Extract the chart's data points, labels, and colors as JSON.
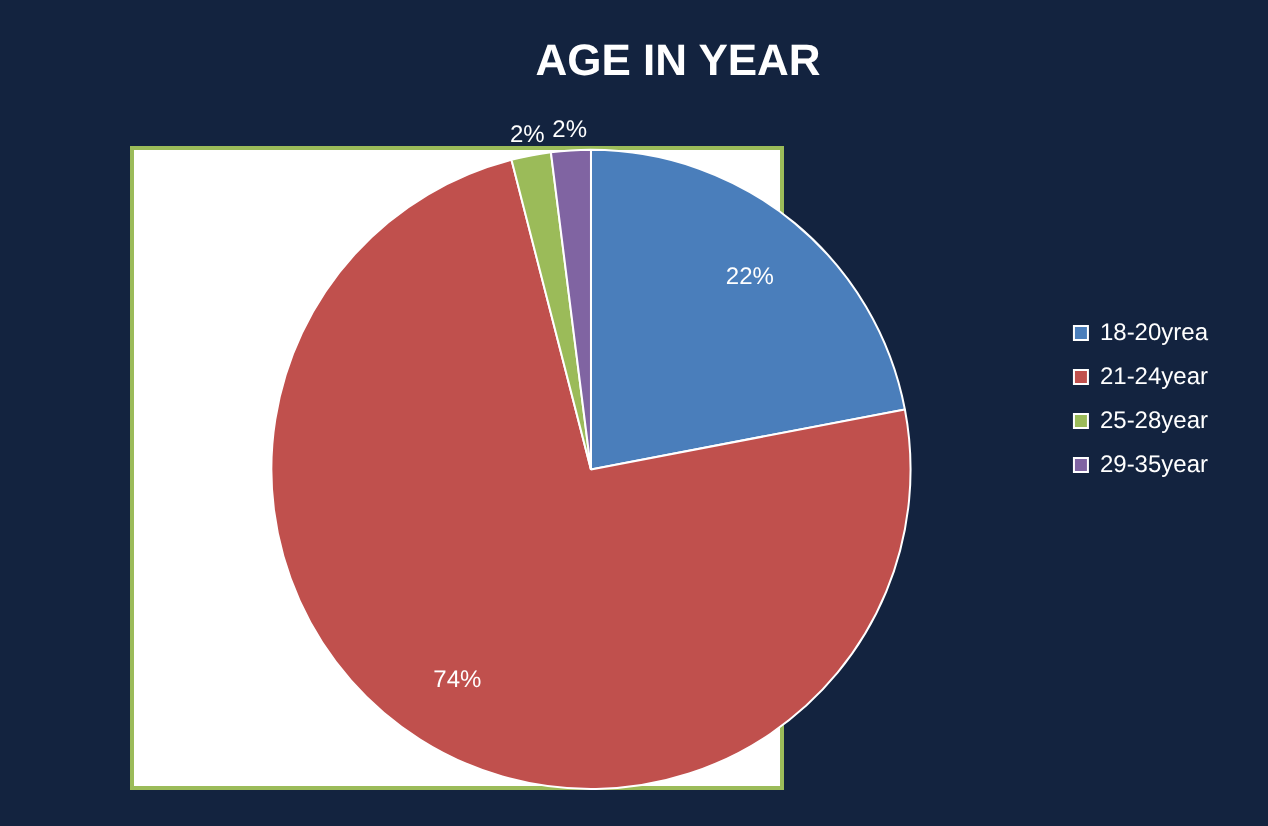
{
  "chart_data": {
    "type": "pie",
    "title": "AGE IN YEAR",
    "categories": [
      "18-20yrea",
      "21-24year",
      "25-28year",
      "29-35year"
    ],
    "values": [
      22,
      74,
      2,
      2
    ],
    "colors": [
      "#4a7ebb",
      "#c0504d",
      "#9bbb59",
      "#8064a2"
    ],
    "value_labels": [
      "22%",
      "74%",
      "2%",
      "2%"
    ],
    "legend": "right"
  }
}
